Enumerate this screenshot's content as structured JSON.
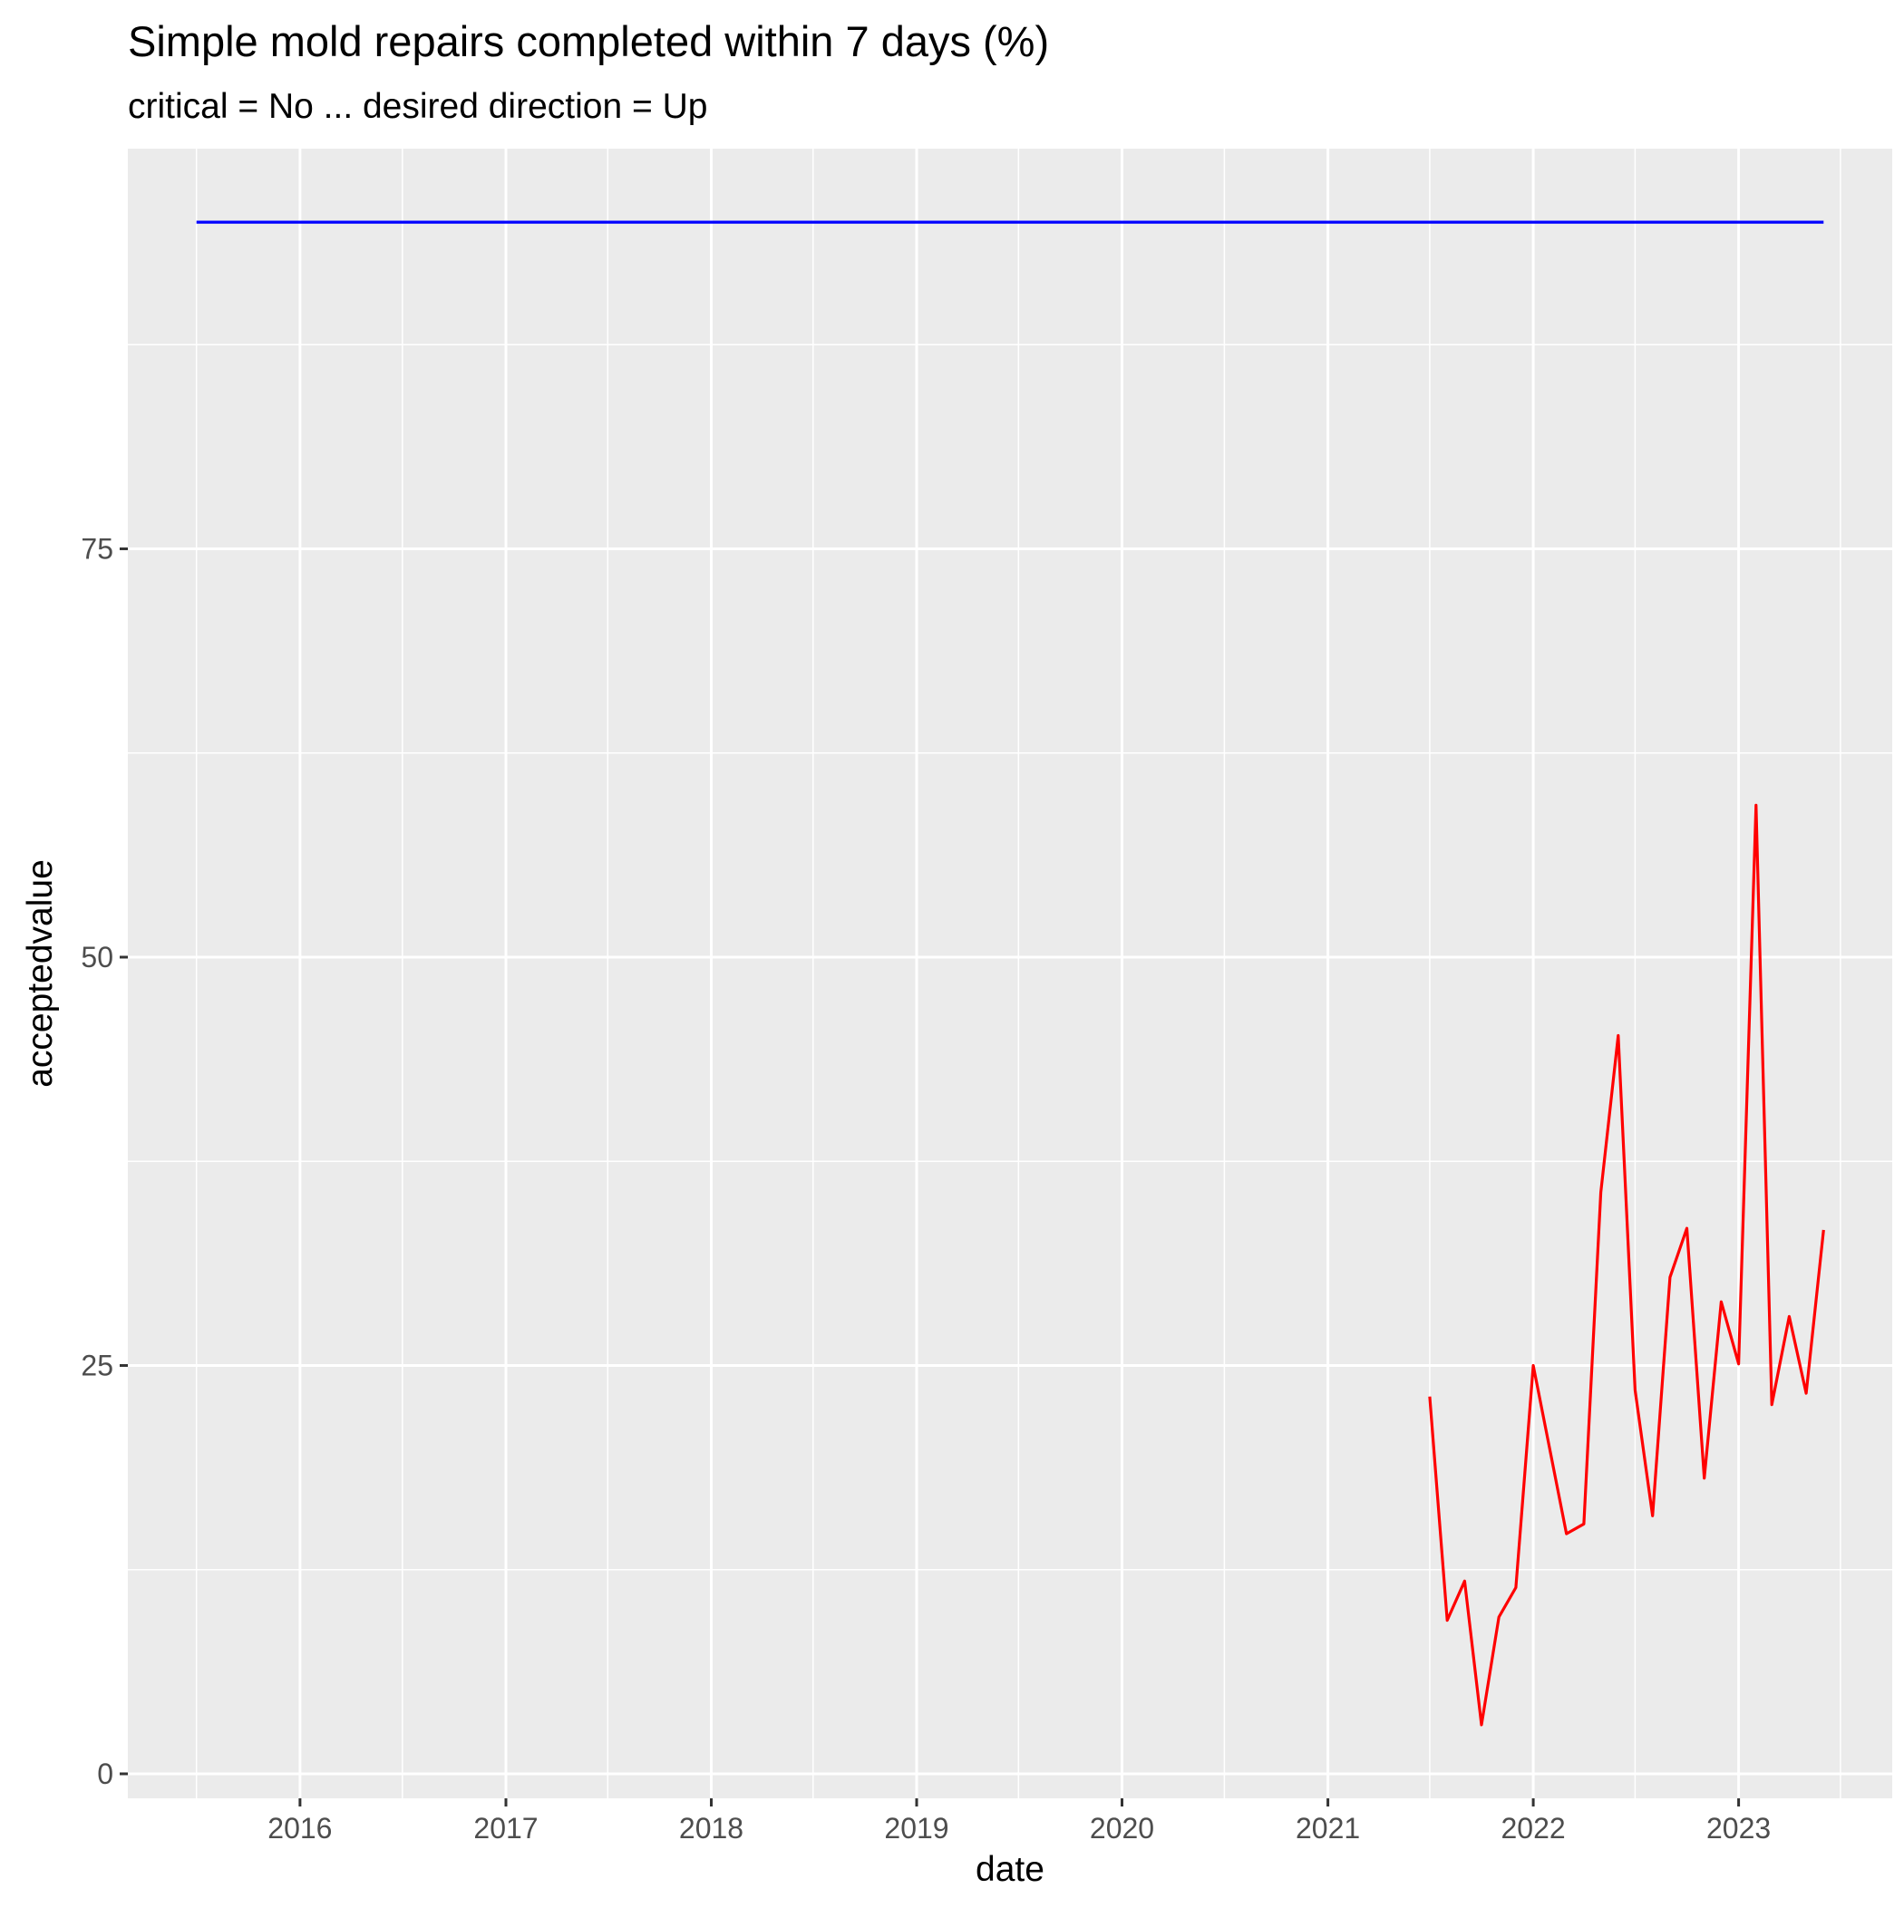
{
  "chart_data": {
    "type": "line",
    "title": "Simple mold repairs completed within 7 days (%)",
    "subtitle": "critical = No ... desired direction = Up",
    "xlabel": "date",
    "ylabel": "acceptedvalue",
    "xlim": [
      "2015-03-01",
      "2023-10-01"
    ],
    "ylim": [
      -1.5,
      99.5
    ],
    "x_ticks": [
      "2016-01-01",
      "2017-01-01",
      "2018-01-01",
      "2019-01-01",
      "2020-01-01",
      "2021-01-01",
      "2022-01-01",
      "2023-01-01"
    ],
    "x_tick_labels": [
      "2016",
      "2017",
      "2018",
      "2019",
      "2020",
      "2021",
      "2022",
      "2023"
    ],
    "x_minor_ticks": [
      "2015-07-01",
      "2016-07-01",
      "2017-07-01",
      "2018-07-01",
      "2019-07-01",
      "2020-07-01",
      "2021-07-01",
      "2022-07-01",
      "2023-07-01"
    ],
    "y_ticks": [
      0,
      25,
      50,
      75
    ],
    "y_tick_labels": [
      "0",
      "25",
      "50",
      "75"
    ],
    "y_minor_ticks": [
      12.5,
      37.5,
      62.5,
      87.5
    ],
    "grid": true,
    "legend": "none",
    "panel_background": "#ebebeb",
    "gridline_color": "#ffffff",
    "series": [
      {
        "color": "#ff0000",
        "x": [
          "2021-07-01",
          "2021-08-01",
          "2021-09-01",
          "2021-10-01",
          "2021-11-01",
          "2021-12-01",
          "2022-01-01",
          "2022-02-01",
          "2022-03-01",
          "2022-04-01",
          "2022-05-01",
          "2022-06-01",
          "2022-07-01",
          "2022-08-01",
          "2022-09-01",
          "2022-10-01",
          "2022-11-01",
          "2022-12-01",
          "2023-01-01",
          "2023-02-01",
          "2023-03-01",
          "2023-04-01",
          "2023-05-01",
          "2023-06-01"
        ],
        "values": [
          23.1,
          9.4,
          11.8,
          3.0,
          9.6,
          11.4,
          25.0,
          19.6,
          14.7,
          15.3,
          35.6,
          45.2,
          23.5,
          15.8,
          30.4,
          33.4,
          18.1,
          28.9,
          25.1,
          59.3,
          22.6,
          28.0,
          23.3,
          33.3
        ]
      },
      {
        "color": "#0000ff",
        "x": [
          "2015-07-01",
          "2023-06-01"
        ],
        "values": [
          95,
          95
        ]
      }
    ]
  }
}
